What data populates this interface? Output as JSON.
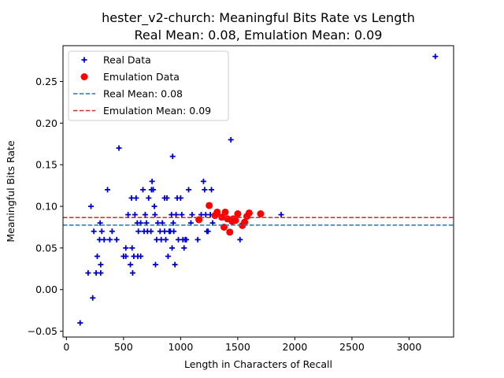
{
  "chart_data": {
    "type": "scatter",
    "title_line1": "hester_v2-church: Meaningful Bits Rate vs Length",
    "title_line2": "Real Mean: 0.08, Emulation Mean: 0.09",
    "xlabel": "Length in Characters of Recall",
    "ylabel": "Meaningful Bits Rate",
    "xlim": [
      -30,
      3390
    ],
    "ylim": [
      -0.057,
      0.293
    ],
    "xticks": [
      0,
      500,
      1000,
      1500,
      2000,
      2500,
      3000
    ],
    "yticks": [
      -0.05,
      0.0,
      0.05,
      0.1,
      0.15,
      0.2,
      0.25
    ],
    "yticklabels": [
      "−0.05",
      "0.00",
      "0.05",
      "0.10",
      "0.15",
      "0.20",
      "0.25"
    ],
    "legend_position": "top-left",
    "series": [
      {
        "name": "Real Data",
        "marker": "plus",
        "color": "#0000cc",
        "points": [
          [
            120,
            -0.04
          ],
          [
            190,
            0.02
          ],
          [
            215,
            0.1
          ],
          [
            230,
            -0.01
          ],
          [
            240,
            0.07
          ],
          [
            260,
            0.02
          ],
          [
            270,
            0.04
          ],
          [
            290,
            0.06
          ],
          [
            295,
            0.08
          ],
          [
            300,
            0.03
          ],
          [
            300,
            0.02
          ],
          [
            310,
            0.07
          ],
          [
            330,
            0.06
          ],
          [
            360,
            0.12
          ],
          [
            380,
            0.06
          ],
          [
            400,
            0.07
          ],
          [
            440,
            0.06
          ],
          [
            460,
            0.17
          ],
          [
            500,
            0.04
          ],
          [
            520,
            0.05
          ],
          [
            520,
            0.04
          ],
          [
            540,
            0.09
          ],
          [
            560,
            0.03
          ],
          [
            570,
            0.11
          ],
          [
            575,
            0.05
          ],
          [
            580,
            0.02
          ],
          [
            590,
            0.04
          ],
          [
            600,
            0.09
          ],
          [
            610,
            0.11
          ],
          [
            620,
            0.08
          ],
          [
            625,
            0.04
          ],
          [
            630,
            0.07
          ],
          [
            650,
            0.04
          ],
          [
            650,
            0.08
          ],
          [
            670,
            0.12
          ],
          [
            680,
            0.07
          ],
          [
            690,
            0.09
          ],
          [
            700,
            0.08
          ],
          [
            710,
            0.07
          ],
          [
            720,
            0.11
          ],
          [
            740,
            0.07
          ],
          [
            745,
            0.12
          ],
          [
            750,
            0.13
          ],
          [
            760,
            0.12
          ],
          [
            770,
            0.1
          ],
          [
            775,
            0.09
          ],
          [
            780,
            0.03
          ],
          [
            790,
            0.06
          ],
          [
            800,
            0.08
          ],
          [
            820,
            0.07
          ],
          [
            830,
            0.06
          ],
          [
            840,
            0.08
          ],
          [
            860,
            0.07
          ],
          [
            860,
            0.11
          ],
          [
            870,
            0.06
          ],
          [
            880,
            0.11
          ],
          [
            890,
            0.04
          ],
          [
            900,
            0.07
          ],
          [
            910,
            0.07
          ],
          [
            920,
            0.09
          ],
          [
            925,
            0.05
          ],
          [
            930,
            0.16
          ],
          [
            935,
            0.08
          ],
          [
            940,
            0.07
          ],
          [
            950,
            0.03
          ],
          [
            960,
            0.09
          ],
          [
            970,
            0.11
          ],
          [
            980,
            0.06
          ],
          [
            1000,
            0.11
          ],
          [
            1010,
            0.09
          ],
          [
            1020,
            0.06
          ],
          [
            1030,
            0.05
          ],
          [
            1040,
            0.06
          ],
          [
            1050,
            0.06
          ],
          [
            1070,
            0.12
          ],
          [
            1090,
            0.08
          ],
          [
            1100,
            0.09
          ],
          [
            1150,
            0.06
          ],
          [
            1180,
            0.09
          ],
          [
            1200,
            0.13
          ],
          [
            1210,
            0.12
          ],
          [
            1220,
            0.09
          ],
          [
            1230,
            0.07
          ],
          [
            1240,
            0.07
          ],
          [
            1260,
            0.09
          ],
          [
            1270,
            0.12
          ],
          [
            1280,
            0.08
          ],
          [
            1440,
            0.18
          ],
          [
            1520,
            0.06
          ],
          [
            1880,
            0.09
          ],
          [
            3230,
            0.28
          ]
        ]
      },
      {
        "name": "Emulation Data",
        "marker": "circle",
        "color": "#ff0000",
        "points": [
          [
            1160,
            0.084
          ],
          [
            1250,
            0.101
          ],
          [
            1300,
            0.089
          ],
          [
            1320,
            0.093
          ],
          [
            1360,
            0.087
          ],
          [
            1380,
            0.075
          ],
          [
            1390,
            0.093
          ],
          [
            1410,
            0.085
          ],
          [
            1430,
            0.069
          ],
          [
            1450,
            0.082
          ],
          [
            1460,
            0.085
          ],
          [
            1480,
            0.083
          ],
          [
            1500,
            0.091
          ],
          [
            1540,
            0.077
          ],
          [
            1560,
            0.081
          ],
          [
            1580,
            0.088
          ],
          [
            1600,
            0.092
          ],
          [
            1700,
            0.091
          ]
        ]
      }
    ],
    "reference_lines": [
      {
        "name": "Real Mean: 0.08",
        "value": 0.0775,
        "color": "#1f77b4",
        "style": "dashed"
      },
      {
        "name": "Emulation Mean: 0.09",
        "value": 0.0865,
        "color": "#d62728",
        "style": "dashed"
      }
    ]
  }
}
